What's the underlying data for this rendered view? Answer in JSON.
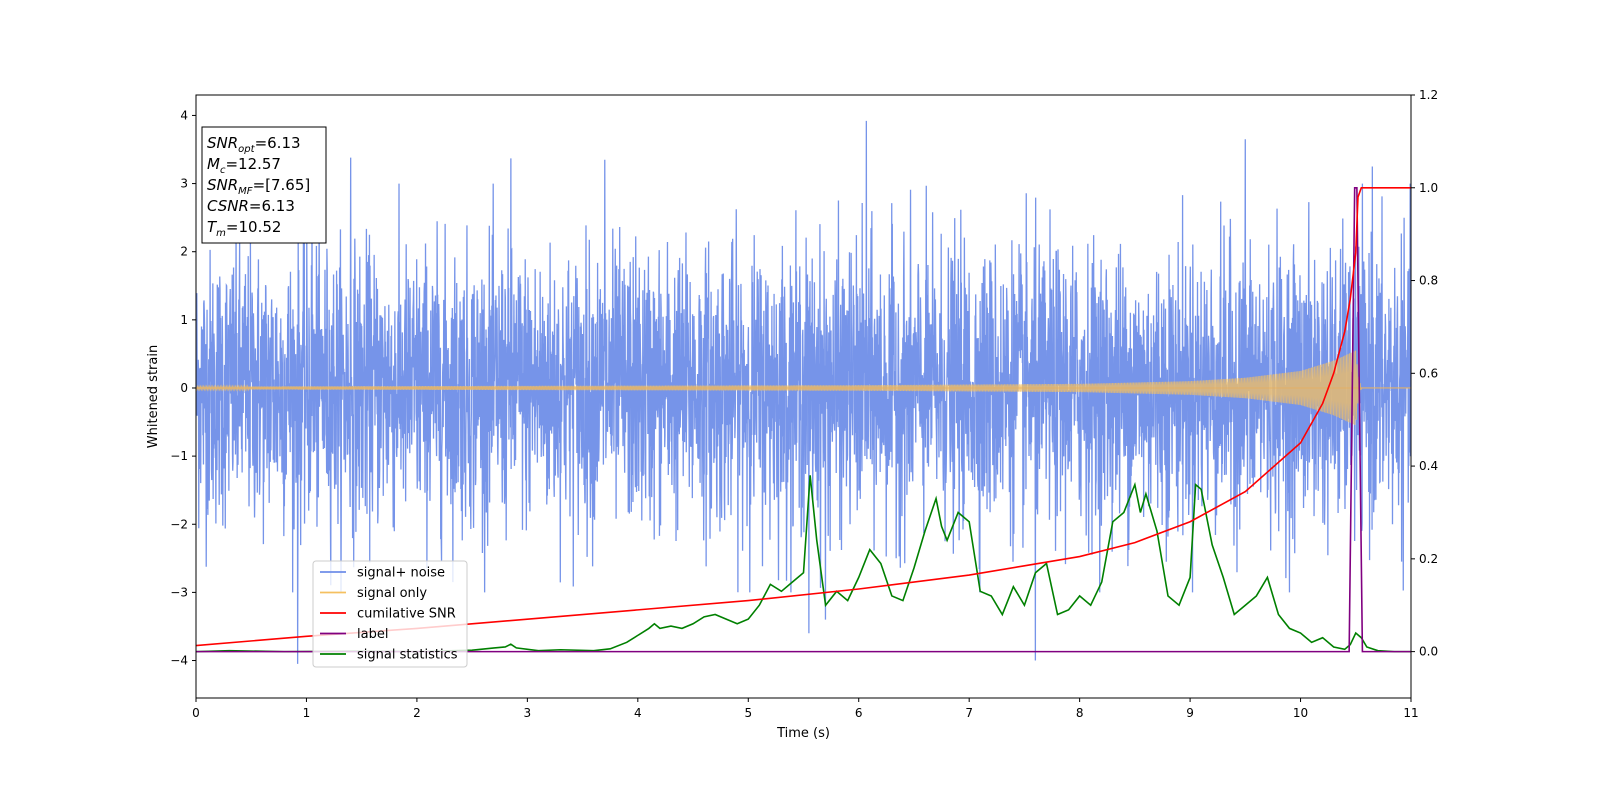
{
  "chart_data": {
    "type": "line",
    "xlabel": "Time (s)",
    "ylabel": "Whitened strain",
    "xlim": [
      0,
      11
    ],
    "ylim_left": [
      -4.55,
      4.3
    ],
    "ylim_right": [
      -0.1,
      1.2
    ],
    "x_ticks": [
      "0",
      "1",
      "2",
      "3",
      "4",
      "5",
      "6",
      "7",
      "8",
      "9",
      "10",
      "11"
    ],
    "y_left_ticks": [
      "−4",
      "−3",
      "−2",
      "−1",
      "0",
      "1",
      "2",
      "3",
      "4"
    ],
    "y_right_ticks": [
      "0.0",
      "0.2",
      "0.4",
      "0.6",
      "0.8",
      "1.0",
      "1.2"
    ],
    "info_box": {
      "placement": "top-left",
      "lines": [
        {
          "base": "SNR",
          "sub": "opt",
          "value": "=6.13"
        },
        {
          "base": "M",
          "sub": "c",
          "value": "=12.57"
        },
        {
          "base": "SNR",
          "sub": "MF",
          "value": "=[7.65]"
        },
        {
          "base": "CSNR",
          "sub": "",
          "value": "=6.13"
        },
        {
          "base": "T",
          "sub": "m",
          "value": "=10.52"
        }
      ]
    },
    "legend": {
      "placement": "lower-left",
      "entries": [
        {
          "label": "signal+ noise",
          "color": "#6f8ee8"
        },
        {
          "label": "signal only",
          "color": "#f5c060"
        },
        {
          "label": "cumilative SNR",
          "color": "#ff0000"
        },
        {
          "label": "label",
          "color": "#800080"
        },
        {
          "label": "signal statistics",
          "color": "#008000"
        }
      ]
    },
    "series": [
      {
        "name": "signal+ noise",
        "axis": "left",
        "note": "white noise, amplitude ~1.0, spikes to ~3.9",
        "peaks": [
          [
            0.92,
            -4.05
          ],
          [
            1.05,
            3.1
          ],
          [
            1.4,
            3.38
          ],
          [
            2.85,
            3.37
          ],
          [
            3.7,
            3.35
          ],
          [
            5.55,
            -3.6
          ],
          [
            5.7,
            -3.4
          ],
          [
            6.07,
            3.92
          ],
          [
            7.6,
            -4.0
          ],
          [
            9.5,
            3.65
          ],
          [
            10.65,
            3.25
          ]
        ]
      },
      {
        "name": "signal only",
        "axis": "left",
        "note": "chirp; envelope amplitude over time",
        "envelope": [
          [
            0,
            0.02
          ],
          [
            3,
            0.03
          ],
          [
            6,
            0.04
          ],
          [
            8,
            0.06
          ],
          [
            9,
            0.1
          ],
          [
            9.5,
            0.15
          ],
          [
            10,
            0.25
          ],
          [
            10.3,
            0.4
          ],
          [
            10.5,
            0.55
          ],
          [
            10.52,
            0.2
          ],
          [
            10.55,
            0
          ]
        ]
      },
      {
        "name": "cumilative SNR",
        "axis": "right",
        "points": [
          [
            0,
            0.013
          ],
          [
            1,
            0.033
          ],
          [
            2,
            0.05
          ],
          [
            3,
            0.07
          ],
          [
            4,
            0.09
          ],
          [
            5,
            0.11
          ],
          [
            6,
            0.135
          ],
          [
            7,
            0.165
          ],
          [
            7.5,
            0.185
          ],
          [
            8,
            0.205
          ],
          [
            8.5,
            0.235
          ],
          [
            9,
            0.28
          ],
          [
            9.5,
            0.345
          ],
          [
            10,
            0.45
          ],
          [
            10.2,
            0.535
          ],
          [
            10.3,
            0.6
          ],
          [
            10.4,
            0.69
          ],
          [
            10.45,
            0.76
          ],
          [
            10.5,
            0.86
          ],
          [
            10.52,
            0.98
          ],
          [
            10.55,
            1.0
          ],
          [
            11,
            1.0
          ]
        ]
      },
      {
        "name": "label",
        "axis": "right",
        "points": [
          [
            0,
            0.0
          ],
          [
            10.44,
            0.0
          ],
          [
            10.49,
            1.0
          ],
          [
            10.51,
            1.0
          ],
          [
            10.56,
            0.0
          ],
          [
            11,
            0.0
          ]
        ]
      },
      {
        "name": "signal statistics",
        "axis": "right",
        "points": [
          [
            0,
            0.0
          ],
          [
            0.3,
            0.002
          ],
          [
            0.8,
            0.0
          ],
          [
            1.5,
            0.001
          ],
          [
            2.0,
            0.0
          ],
          [
            2.5,
            0.003
          ],
          [
            2.7,
            0.008
          ],
          [
            2.8,
            0.01
          ],
          [
            2.85,
            0.016
          ],
          [
            2.9,
            0.008
          ],
          [
            3.1,
            0.002
          ],
          [
            3.3,
            0.004
          ],
          [
            3.6,
            0.002
          ],
          [
            3.75,
            0.006
          ],
          [
            3.9,
            0.02
          ],
          [
            4.0,
            0.035
          ],
          [
            4.1,
            0.05
          ],
          [
            4.15,
            0.06
          ],
          [
            4.2,
            0.05
          ],
          [
            4.3,
            0.055
          ],
          [
            4.4,
            0.05
          ],
          [
            4.5,
            0.06
          ],
          [
            4.6,
            0.075
          ],
          [
            4.7,
            0.08
          ],
          [
            4.8,
            0.07
          ],
          [
            4.9,
            0.06
          ],
          [
            5.0,
            0.07
          ],
          [
            5.1,
            0.1
          ],
          [
            5.2,
            0.145
          ],
          [
            5.3,
            0.13
          ],
          [
            5.4,
            0.15
          ],
          [
            5.5,
            0.17
          ],
          [
            5.56,
            0.38
          ],
          [
            5.62,
            0.24
          ],
          [
            5.7,
            0.1
          ],
          [
            5.8,
            0.13
          ],
          [
            5.9,
            0.11
          ],
          [
            6.0,
            0.16
          ],
          [
            6.1,
            0.22
          ],
          [
            6.2,
            0.19
          ],
          [
            6.3,
            0.12
          ],
          [
            6.4,
            0.11
          ],
          [
            6.5,
            0.18
          ],
          [
            6.6,
            0.26
          ],
          [
            6.7,
            0.33
          ],
          [
            6.75,
            0.27
          ],
          [
            6.8,
            0.24
          ],
          [
            6.9,
            0.3
          ],
          [
            7.0,
            0.28
          ],
          [
            7.1,
            0.13
          ],
          [
            7.2,
            0.12
          ],
          [
            7.3,
            0.08
          ],
          [
            7.4,
            0.14
          ],
          [
            7.5,
            0.1
          ],
          [
            7.6,
            0.17
          ],
          [
            7.7,
            0.19
          ],
          [
            7.8,
            0.08
          ],
          [
            7.9,
            0.09
          ],
          [
            8.0,
            0.12
          ],
          [
            8.1,
            0.1
          ],
          [
            8.2,
            0.15
          ],
          [
            8.3,
            0.28
          ],
          [
            8.4,
            0.3
          ],
          [
            8.5,
            0.36
          ],
          [
            8.55,
            0.3
          ],
          [
            8.6,
            0.34
          ],
          [
            8.7,
            0.26
          ],
          [
            8.8,
            0.12
          ],
          [
            8.9,
            0.1
          ],
          [
            9.0,
            0.16
          ],
          [
            9.05,
            0.36
          ],
          [
            9.1,
            0.35
          ],
          [
            9.2,
            0.23
          ],
          [
            9.3,
            0.16
          ],
          [
            9.4,
            0.08
          ],
          [
            9.5,
            0.1
          ],
          [
            9.6,
            0.12
          ],
          [
            9.7,
            0.16
          ],
          [
            9.8,
            0.08
          ],
          [
            9.9,
            0.05
          ],
          [
            10.0,
            0.04
          ],
          [
            10.1,
            0.02
          ],
          [
            10.2,
            0.03
          ],
          [
            10.3,
            0.01
          ],
          [
            10.4,
            0.005
          ],
          [
            10.45,
            0.015
          ],
          [
            10.5,
            0.04
          ],
          [
            10.55,
            0.03
          ],
          [
            10.6,
            0.01
          ],
          [
            10.7,
            0.002
          ],
          [
            10.85,
            0.0
          ],
          [
            11,
            0.0
          ]
        ]
      }
    ]
  }
}
